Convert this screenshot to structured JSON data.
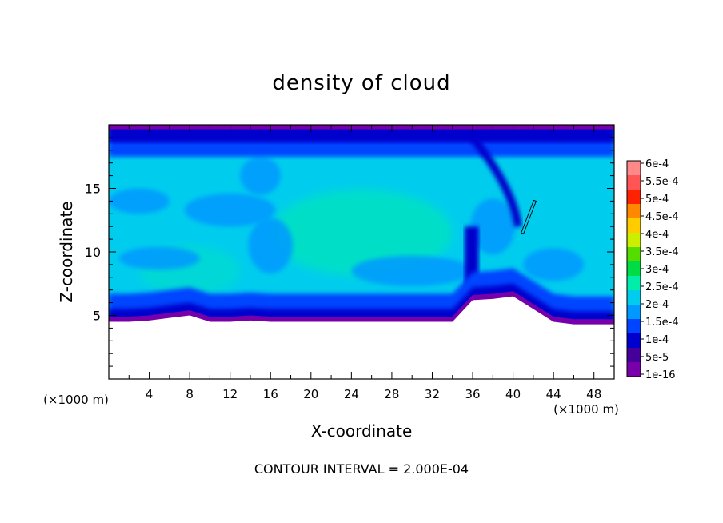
{
  "chart_data": {
    "type": "heatmap",
    "title": "density of cloud",
    "xlabel": "X-coordinate",
    "ylabel": "Z-coordinate",
    "x_unit": "(×1000 m)",
    "z_unit": "(×1000 m)",
    "xlim": [
      0,
      50
    ],
    "ylim": [
      0,
      20
    ],
    "x_ticks": [
      4,
      8,
      12,
      16,
      20,
      24,
      28,
      32,
      36,
      40,
      44,
      48
    ],
    "y_ticks": [
      5,
      10,
      15
    ],
    "footer": "CONTOUR INTERVAL = 2.000E-04",
    "legend_placement": "right",
    "colorbar": {
      "labels": [
        "6e-4",
        "5.5e-4",
        "5e-4",
        "4.5e-4",
        "4e-4",
        "3.5e-4",
        "3e-4",
        "2.5e-4",
        "2e-4",
        "1.5e-4",
        "1e-4",
        "5e-5",
        "1e-16"
      ],
      "colors": [
        "#ff8888",
        "#ff5555",
        "#ff2200",
        "#ff8800",
        "#ffcc00",
        "#ccee00",
        "#55dd00",
        "#00dd44",
        "#00eeaa",
        "#00ccee",
        "#0099ff",
        "#0044ff",
        "#0000cc",
        "#440099",
        "#7700aa"
      ]
    },
    "field": {
      "background_color": "#00ccee",
      "regions": [
        {
          "level": "1e-16",
          "color": "#7700aa",
          "band": "top and lower edge of cloud"
        },
        {
          "level": "5e-5",
          "color": "#0000cc"
        },
        {
          "level": "1e-4",
          "color": "#0044ff"
        },
        {
          "level": "1.5e-4",
          "color": "#0099ff"
        },
        {
          "level": "2e-4",
          "color": "#00ccee"
        },
        {
          "level": "2.5e-4",
          "color": "#00eeaa"
        }
      ],
      "cloud_base_z": [
        4.5,
        4.5,
        4.6,
        4.8,
        5,
        4.5,
        4.5,
        4.6,
        4.5,
        4.5,
        4.5,
        4.5,
        4.5,
        4.5,
        4.5,
        4.5,
        4.5,
        4.5,
        6.2,
        6.3,
        6.5,
        5.5,
        4.5,
        4.3,
        4.3,
        4.3
      ],
      "cloud_base_x": [
        0,
        2,
        4,
        6,
        8,
        10,
        12,
        14,
        16,
        18,
        20,
        22,
        24,
        26,
        28,
        30,
        32,
        34,
        36,
        38,
        40,
        42,
        44,
        46,
        48,
        50
      ],
      "cloud_top_z": 19
    },
    "contour_line": {
      "x": [
        40.8,
        42.2
      ],
      "z": [
        11.5,
        14
      ]
    }
  }
}
